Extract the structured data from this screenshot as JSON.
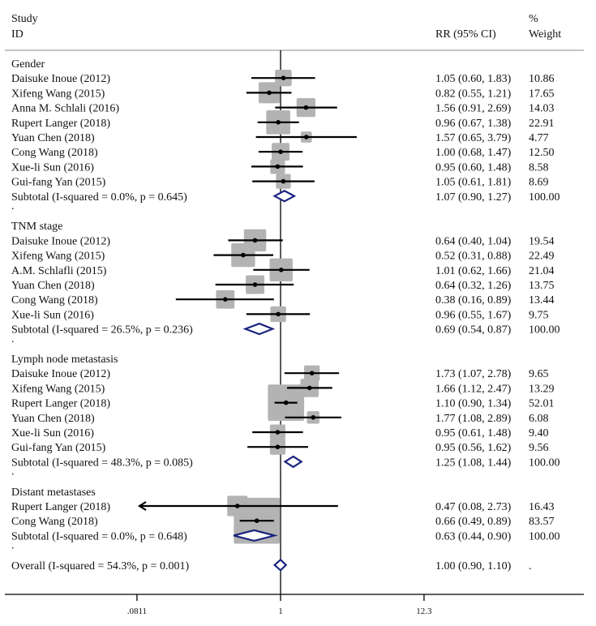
{
  "chart_data": {
    "type": "forest",
    "xscale": "log",
    "null_value": 1,
    "header": {
      "study_col": [
        "Study",
        "ID"
      ],
      "effect_col": "RR (95% CI)",
      "weight_col": [
        "%",
        "Weight"
      ]
    },
    "xticks": [
      {
        "value": 0.0811,
        "label": ".0811"
      },
      {
        "value": 1,
        "label": "1"
      },
      {
        "value": 12.3,
        "label": "12.3"
      }
    ],
    "xlim": [
      0.0811,
      12.3
    ],
    "colors": {
      "box": "#b3b3b3",
      "diamond": "#1a237e",
      "line": "#000000",
      "separator": "#b0b0b0"
    },
    "rows": [
      {
        "kind": "group",
        "label": "Gender"
      },
      {
        "kind": "study",
        "label": "Daisuke Inoue (2012)",
        "rr": 1.05,
        "lo": 0.6,
        "hi": 1.83,
        "ci_text": "1.05 (0.60, 1.83)",
        "weight": 10.86,
        "weight_text": "10.86"
      },
      {
        "kind": "study",
        "label": "Xifeng Wang (2015)",
        "rr": 0.82,
        "lo": 0.55,
        "hi": 1.21,
        "ci_text": "0.82 (0.55, 1.21)",
        "weight": 17.65,
        "weight_text": "17.65"
      },
      {
        "kind": "study",
        "label": "Anna M. Schlali (2016)",
        "rr": 1.56,
        "lo": 0.91,
        "hi": 2.69,
        "ci_text": "1.56 (0.91, 2.69)",
        "weight": 14.03,
        "weight_text": "14.03"
      },
      {
        "kind": "study",
        "label": "Rupert Langer (2018)",
        "rr": 0.96,
        "lo": 0.67,
        "hi": 1.38,
        "ci_text": "0.96 (0.67, 1.38)",
        "weight": 22.91,
        "weight_text": "22.91"
      },
      {
        "kind": "study",
        "label": "Yuan Chen (2018)",
        "rr": 1.57,
        "lo": 0.65,
        "hi": 3.79,
        "ci_text": "1.57 (0.65, 3.79)",
        "weight": 4.77,
        "weight_text": "4.77"
      },
      {
        "kind": "study",
        "label": "Cong Wang (2018)",
        "rr": 1.0,
        "lo": 0.68,
        "hi": 1.47,
        "ci_text": "1.00 (0.68, 1.47)",
        "weight": 12.5,
        "weight_text": "12.50"
      },
      {
        "kind": "study",
        "label": "Xue-li Sun (2016)",
        "rr": 0.95,
        "lo": 0.6,
        "hi": 1.48,
        "ci_text": "0.95 (0.60, 1.48)",
        "weight": 8.58,
        "weight_text": "8.58"
      },
      {
        "kind": "study",
        "label": "Gui-fang Yan (2015)",
        "rr": 1.05,
        "lo": 0.61,
        "hi": 1.81,
        "ci_text": "1.05 (0.61, 1.81)",
        "weight": 8.69,
        "weight_text": "8.69"
      },
      {
        "kind": "subtotal",
        "label": "Subtotal  (I-squared = 0.0%, p = 0.645)",
        "rr": 1.07,
        "lo": 0.9,
        "hi": 1.27,
        "ci_text": "1.07 (0.90, 1.27)",
        "weight_text": "100.00"
      },
      {
        "kind": "spacer",
        "label": "."
      },
      {
        "kind": "group",
        "label": "TNM stage"
      },
      {
        "kind": "study",
        "label": "Daisuke Inoue (2012)",
        "rr": 0.64,
        "lo": 0.4,
        "hi": 1.04,
        "ci_text": "0.64 (0.40, 1.04)",
        "weight": 19.54,
        "weight_text": "19.54"
      },
      {
        "kind": "study",
        "label": "Xifeng Wang (2015)",
        "rr": 0.52,
        "lo": 0.31,
        "hi": 0.88,
        "ci_text": "0.52 (0.31, 0.88)",
        "weight": 22.49,
        "weight_text": "22.49"
      },
      {
        "kind": "study",
        "label": "A.M. Schlafli (2015)",
        "rr": 1.01,
        "lo": 0.62,
        "hi": 1.66,
        "ci_text": "1.01 (0.62, 1.66)",
        "weight": 21.04,
        "weight_text": "21.04"
      },
      {
        "kind": "study",
        "label": "Yuan Chen (2018)",
        "rr": 0.64,
        "lo": 0.32,
        "hi": 1.26,
        "ci_text": "0.64 (0.32, 1.26)",
        "weight": 13.75,
        "weight_text": "13.75"
      },
      {
        "kind": "study",
        "label": "Cong Wang (2018)",
        "rr": 0.38,
        "lo": 0.16,
        "hi": 0.89,
        "ci_text": "0.38 (0.16, 0.89)",
        "weight": 13.44,
        "weight_text": "13.44"
      },
      {
        "kind": "study",
        "label": "Xue-li Sun (2016)",
        "rr": 0.96,
        "lo": 0.55,
        "hi": 1.67,
        "ci_text": "0.96 (0.55, 1.67)",
        "weight": 9.75,
        "weight_text": "9.75"
      },
      {
        "kind": "subtotal",
        "label": "Subtotal  (I-squared = 26.5%, p = 0.236)",
        "rr": 0.69,
        "lo": 0.54,
        "hi": 0.87,
        "ci_text": "0.69 (0.54, 0.87)",
        "weight_text": "100.00"
      },
      {
        "kind": "spacer",
        "label": "."
      },
      {
        "kind": "group",
        "label": "Lymph node metastasis"
      },
      {
        "kind": "study",
        "label": "Daisuke Inoue (2012)",
        "rr": 1.73,
        "lo": 1.07,
        "hi": 2.78,
        "ci_text": "1.73 (1.07, 2.78)",
        "weight": 9.65,
        "weight_text": "9.65"
      },
      {
        "kind": "study",
        "label": "Xifeng Wang (2015)",
        "rr": 1.66,
        "lo": 1.12,
        "hi": 2.47,
        "ci_text": "1.66 (1.12, 2.47)",
        "weight": 13.29,
        "weight_text": "13.29"
      },
      {
        "kind": "study",
        "label": "Rupert Langer (2018)",
        "rr": 1.1,
        "lo": 0.9,
        "hi": 1.34,
        "ci_text": "1.10 (0.90, 1.34)",
        "weight": 52.01,
        "weight_text": "52.01"
      },
      {
        "kind": "study",
        "label": "Yuan Chen (2018)",
        "rr": 1.77,
        "lo": 1.08,
        "hi": 2.89,
        "ci_text": "1.77 (1.08, 2.89)",
        "weight": 6.08,
        "weight_text": "6.08"
      },
      {
        "kind": "study",
        "label": "Xue-li Sun (2016)",
        "rr": 0.95,
        "lo": 0.61,
        "hi": 1.48,
        "ci_text": "0.95 (0.61, 1.48)",
        "weight": 9.4,
        "weight_text": "9.40"
      },
      {
        "kind": "study",
        "label": "Gui-fang Yan (2015)",
        "rr": 0.95,
        "lo": 0.56,
        "hi": 1.62,
        "ci_text": "0.95 (0.56, 1.62)",
        "weight": 9.56,
        "weight_text": "9.56"
      },
      {
        "kind": "subtotal",
        "label": "Subtotal  (I-squared = 48.3%, p = 0.085)",
        "rr": 1.25,
        "lo": 1.08,
        "hi": 1.44,
        "ci_text": "1.25 (1.08, 1.44)",
        "weight_text": "100.00"
      },
      {
        "kind": "spacer",
        "label": "."
      },
      {
        "kind": "group",
        "label": "Distant metastases"
      },
      {
        "kind": "study",
        "label": "Rupert Langer (2018)",
        "rr": 0.47,
        "lo": 0.08,
        "hi": 2.73,
        "ci_text": "0.47 (0.08, 2.73)",
        "weight": 16.43,
        "weight_text": "16.43",
        "arrow_left": true
      },
      {
        "kind": "study",
        "label": "Cong Wang (2018)",
        "rr": 0.66,
        "lo": 0.49,
        "hi": 0.89,
        "ci_text": "0.66 (0.49, 0.89)",
        "weight": 83.57,
        "weight_text": "83.57"
      },
      {
        "kind": "subtotal",
        "label": "Subtotal  (I-squared = 0.0%, p = 0.648)",
        "rr": 0.63,
        "lo": 0.44,
        "hi": 0.9,
        "ci_text": "0.63 (0.44, 0.90)",
        "weight_text": "100.00"
      },
      {
        "kind": "spacer",
        "label": "."
      },
      {
        "kind": "overall",
        "label": "Overall  (I-squared = 54.3%, p = 0.001)",
        "rr": 1.0,
        "lo": 0.9,
        "hi": 1.1,
        "ci_text": "1.00 (0.90, 1.10)",
        "weight_text": "."
      }
    ]
  }
}
